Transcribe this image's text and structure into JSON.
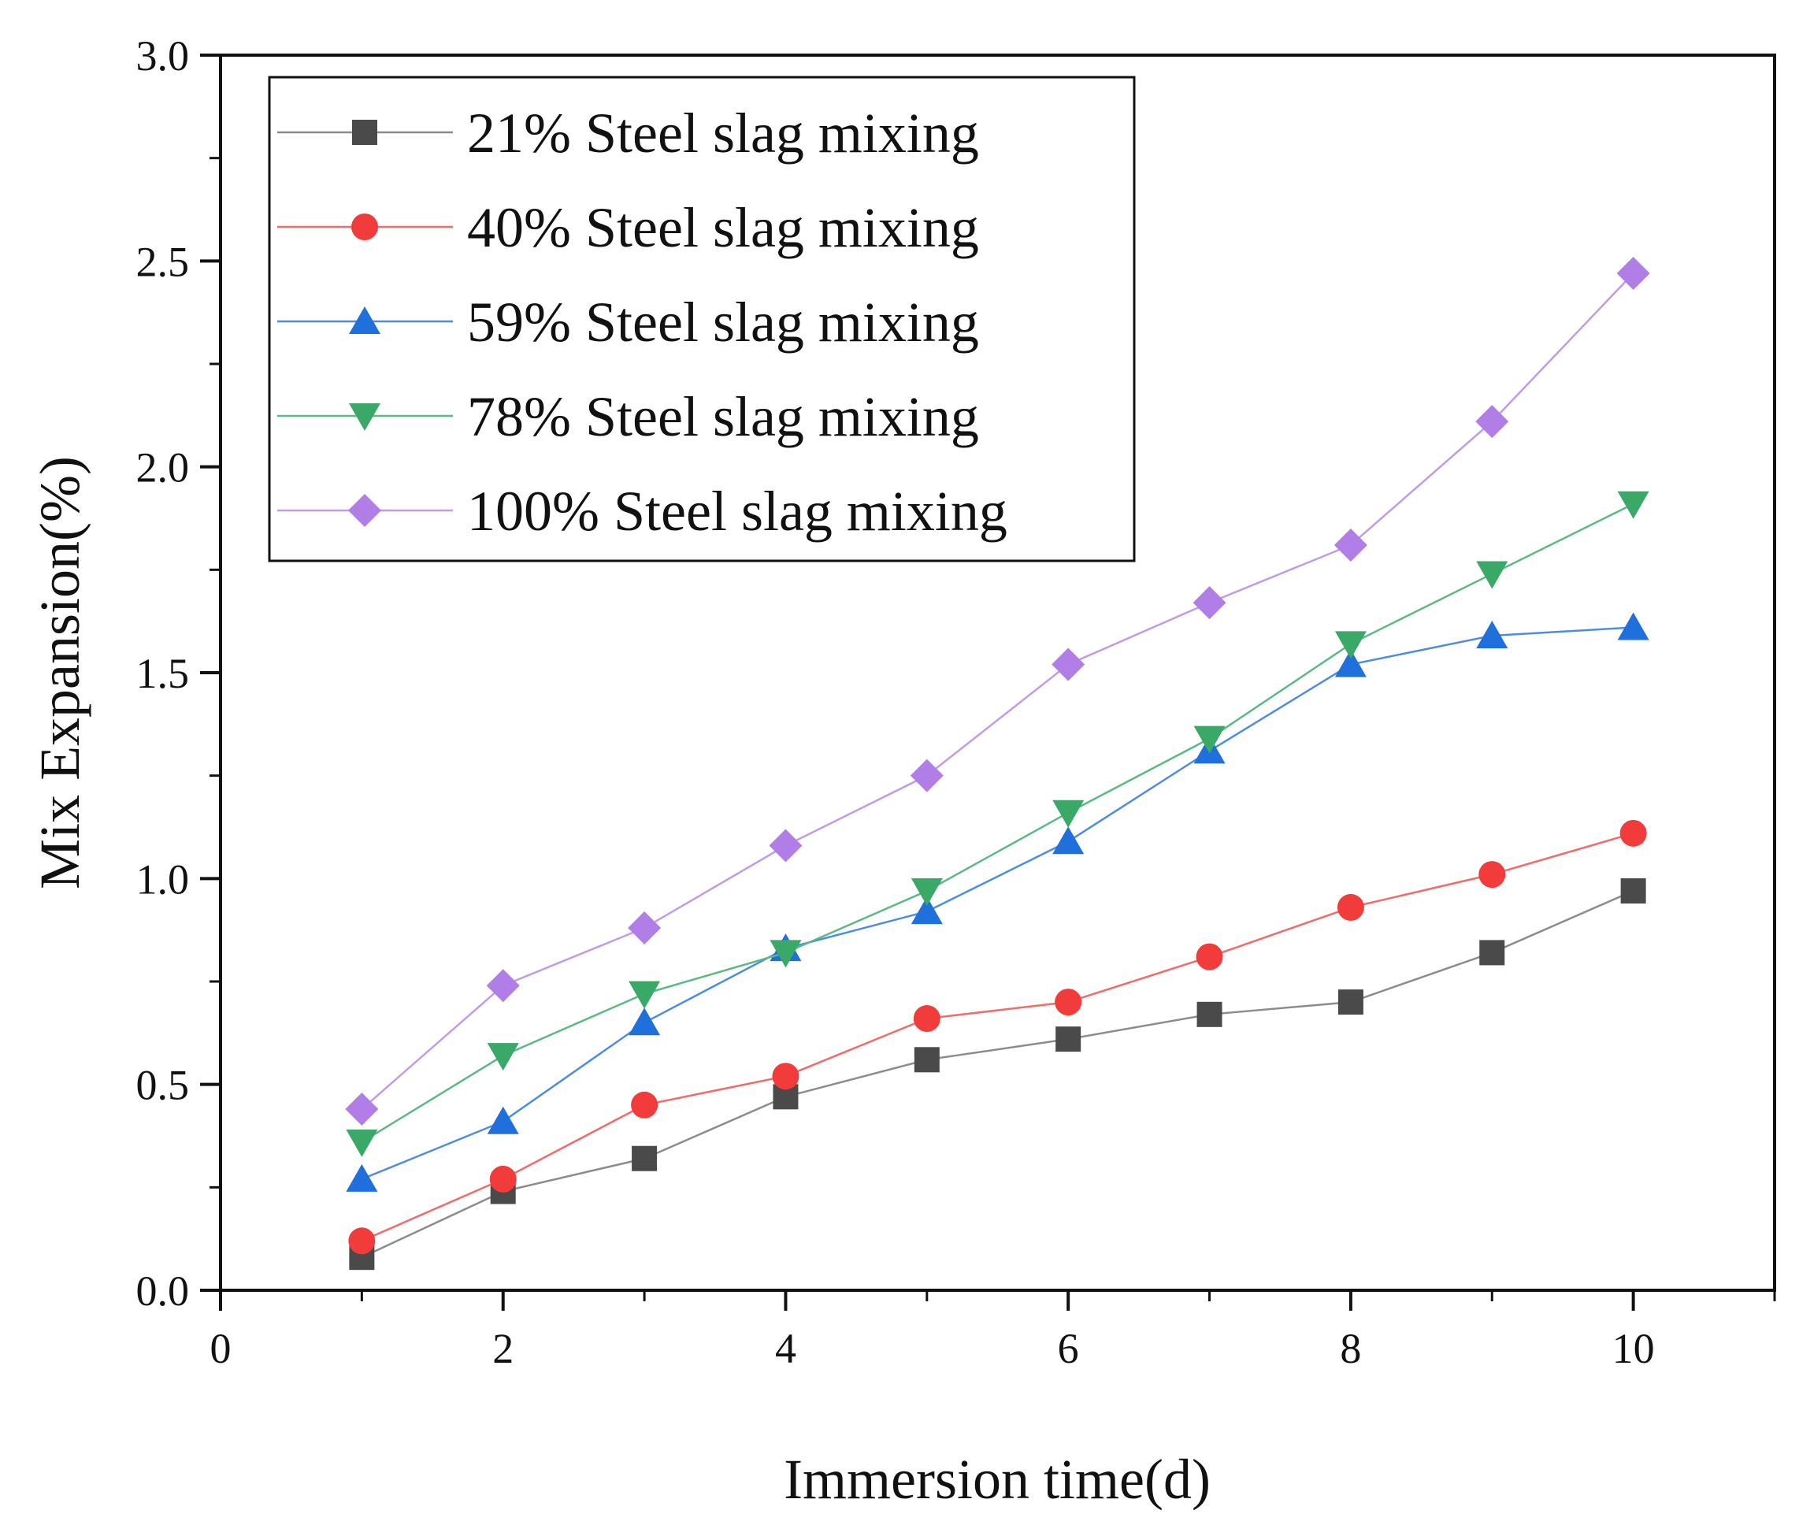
{
  "chart_data": {
    "type": "line",
    "title": "",
    "xlabel": "Immersion time(d)",
    "ylabel": "Mix Expansion(%)",
    "xlim": [
      0,
      11
    ],
    "ylim": [
      0,
      3.0
    ],
    "xticks": [
      0,
      2,
      4,
      6,
      8,
      10
    ],
    "xtick_labels": [
      "0",
      "2",
      "4",
      "6",
      "8",
      "10"
    ],
    "yticks": [
      0,
      0.5,
      1.0,
      1.5,
      2.0,
      2.5,
      3.0
    ],
    "ytick_labels": [
      "0.0",
      "0.5",
      "1.0",
      "1.5",
      "2.0",
      "2.5",
      "3.0"
    ],
    "legend_position": "top-left",
    "x": [
      1,
      2,
      3,
      4,
      5,
      6,
      7,
      8,
      9,
      10
    ],
    "series": [
      {
        "name": "21% Steel slag mixing",
        "marker": "square",
        "color": "#4a4a4a",
        "line_color": "#8c8c8c",
        "values": [
          0.08,
          0.24,
          0.32,
          0.47,
          0.56,
          0.61,
          0.67,
          0.7,
          0.82,
          0.97
        ]
      },
      {
        "name": "40% Steel slag mixing",
        "marker": "circle",
        "color": "#f23b3b",
        "line_color": "#f26a6a",
        "values": [
          0.12,
          0.27,
          0.45,
          0.52,
          0.66,
          0.7,
          0.81,
          0.93,
          1.01,
          1.11
        ]
      },
      {
        "name": "59% Steel slag mixing",
        "marker": "triangle-up",
        "color": "#1f6fdc",
        "line_color": "#4d8de0",
        "values": [
          0.27,
          0.41,
          0.65,
          0.83,
          0.92,
          1.09,
          1.31,
          1.52,
          1.59,
          1.61
        ]
      },
      {
        "name": "78% Steel slag mixing",
        "marker": "triangle-down",
        "color": "#3aa867",
        "line_color": "#5bb984",
        "values": [
          0.36,
          0.57,
          0.72,
          0.82,
          0.97,
          1.16,
          1.34,
          1.57,
          1.74,
          1.91
        ]
      },
      {
        "name": "100% Steel slag mixing",
        "marker": "diamond",
        "color": "#b07ee6",
        "line_color": "#c29be8",
        "values": [
          0.44,
          0.74,
          0.88,
          1.08,
          1.25,
          1.52,
          1.67,
          1.81,
          2.11,
          2.47
        ]
      }
    ]
  }
}
